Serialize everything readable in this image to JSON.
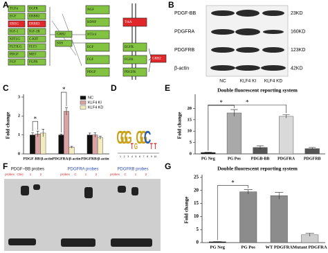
{
  "panels": {
    "a": "A",
    "b": "B",
    "c": "C",
    "d": "D",
    "e": "E",
    "f": "F",
    "g": "G"
  },
  "pathway": {
    "ligands_left": [
      "TGFα",
      "EGF",
      "EREG",
      "IGF-1",
      "KITLG",
      "FLT3LG",
      "PDGF",
      "FGF"
    ],
    "receptors_left": [
      "EGFR",
      "ERBB2",
      "ERBB3",
      "IGF-1R",
      "C-KIT",
      "FLT3",
      "MET",
      "FGFR"
    ],
    "middle": [
      "GRB2",
      "SOS"
    ],
    "ligands_right": [
      "NGF",
      "BDNF",
      "NT3/4",
      "EGF",
      "FGF",
      "PDGF"
    ],
    "receptors_right": [
      "TrkA",
      "EGFR",
      "FGFR",
      "PDGFR"
    ],
    "adaptor": "GRB2"
  },
  "blot": {
    "rows": [
      "PDGF-BB",
      "PDGFRA",
      "PDGFRB",
      "β-actin"
    ],
    "sizes": [
      "23KD",
      "160KD",
      "123KD",
      "42KD"
    ],
    "lanes": [
      "NC",
      "KLF4 KI",
      "KLF4 KD"
    ]
  },
  "logo": {
    "letters": [
      "G",
      "G",
      "G",
      "T",
      "G",
      "G",
      "G",
      "C",
      "T",
      "T"
    ],
    "positions": [
      "1",
      "2",
      "3",
      "4",
      "5",
      "6",
      "7",
      "8",
      "9",
      "10"
    ]
  },
  "gel": {
    "groups": [
      "PDGF−BB  probes",
      "PDGFRA  probes",
      "PDGFRB  probes"
    ],
    "lanes": [
      [
        "probes",
        "Cbio",
        "1",
        "2"
      ],
      [
        "probes",
        "C",
        "1",
        "2"
      ],
      [
        "probes",
        "C",
        "1",
        "2"
      ]
    ]
  },
  "chart_data": [
    {
      "type": "bar",
      "y_label": "Fold change",
      "categories": [
        "PDGF-BB/β-actin",
        "PDGFRA/β-actin",
        "PDGFRB/β-actin"
      ],
      "series": [
        {
          "name": "NC",
          "color": "#111111",
          "values": [
            1,
            1,
            1
          ],
          "errors": [
            0.12,
            0.05,
            0.1
          ]
        },
        {
          "name": "KLF4 KI",
          "color": "#d9a3a3",
          "values": [
            1.05,
            2.25,
            1
          ],
          "errors": [
            0.15,
            0.2,
            0.12
          ]
        },
        {
          "name": "KLF4 KD",
          "color": "#f3ecc0",
          "values": [
            1.1,
            0.35,
            0.85
          ],
          "errors": [
            0.2,
            0.05,
            0.08
          ]
        }
      ],
      "ylim": [
        0,
        3
      ],
      "yticks": [
        0,
        1,
        2,
        3
      ],
      "annotations": [
        "*",
        "*"
      ]
    },
    {
      "type": "bar",
      "title": "Double fluorescent reporting system",
      "y_label": "Fold change",
      "categories": [
        "PG Neg",
        "PG Pos",
        "PDGB-BB",
        "PDGFRA",
        "PDGFRB"
      ],
      "values": [
        0.6,
        18,
        2.8,
        16.5,
        2.3
      ],
      "errors": [
        0.2,
        1.5,
        0.8,
        0.8,
        0.5
      ],
      "colors": [
        "#111111",
        "#a9a9a9",
        "#555555",
        "#d9d9d9",
        "#555555"
      ],
      "ylim": [
        0,
        25
      ],
      "yticks": [
        0,
        5,
        10,
        15,
        20
      ],
      "annotations": [
        "*",
        "*"
      ]
    },
    {
      "type": "bar",
      "title": "Double fluorescent reporting system",
      "y_label": "Fold change",
      "categories": [
        "PG Neg",
        "PG Pos",
        "WT PDGFRA",
        "Mutant PDGFRA"
      ],
      "values": [
        0.3,
        19.5,
        18,
        3
      ],
      "errors": [
        0.1,
        0.8,
        1.3,
        0.6
      ],
      "colors": [
        "#111111",
        "#8c8c8c",
        "#8c8c8c",
        "#cfcfcf"
      ],
      "ylim": [
        0,
        25
      ],
      "yticks": [
        0,
        5,
        10,
        15,
        20,
        25
      ],
      "annotations": [
        "*"
      ]
    }
  ]
}
